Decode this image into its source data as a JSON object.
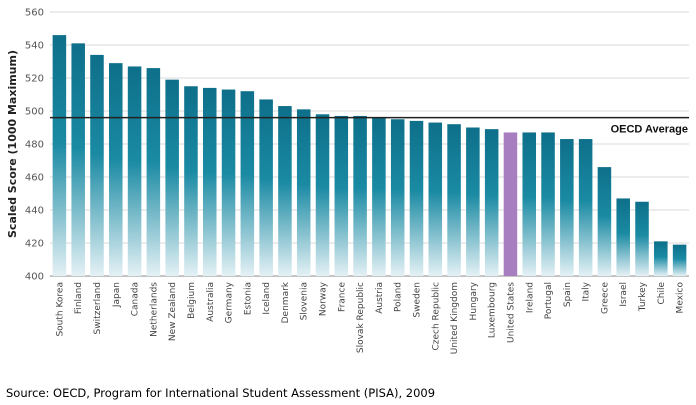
{
  "chart_data": {
    "type": "bar",
    "title": "",
    "ylabel": "Scaled Score (1000 Maximum)",
    "xlabel": "",
    "ylim": [
      400,
      560
    ],
    "yticks": [
      400,
      420,
      440,
      460,
      480,
      500,
      520,
      540,
      560
    ],
    "grid": true,
    "categories": [
      "South Korea",
      "Finland",
      "Switzerland",
      "Japan",
      "Canada",
      "Netherlands",
      "New Zealand",
      "Belgium",
      "Australia",
      "Germany",
      "Estonia",
      "Iceland",
      "Denmark",
      "Slovenia",
      "Norway",
      "France",
      "Slovak Republic",
      "Austria",
      "Poland",
      "Sweden",
      "Czech Republic",
      "United Kingdom",
      "Hungary",
      "Luxembourg",
      "United States",
      "Ireland",
      "Portugal",
      "Spain",
      "Italy",
      "Greece",
      "Israel",
      "Turkey",
      "Chile",
      "Mexico"
    ],
    "values": [
      546,
      541,
      534,
      529,
      527,
      526,
      519,
      515,
      514,
      513,
      512,
      507,
      503,
      501,
      498,
      497,
      497,
      496,
      495,
      494,
      493,
      492,
      490,
      489,
      487,
      487,
      487,
      483,
      483,
      466,
      447,
      445,
      421,
      419
    ],
    "highlight": "United States",
    "reference_line": {
      "value": 496,
      "label": "OECD Average"
    },
    "colors": {
      "bar_top": "#0e6f8a",
      "bar_bottom": "#e4f1f5",
      "highlight": "#a77fc0",
      "reference": "#222222",
      "grid": "#d9d9d9"
    }
  },
  "source": "Source: OECD, Program for International Student Assessment (PISA), 2009"
}
